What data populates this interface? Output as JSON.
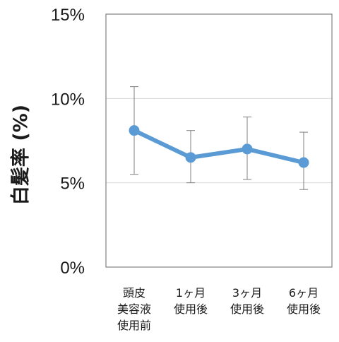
{
  "chart_data": {
    "type": "line",
    "ylabel": "白髪率 (%)",
    "ylim": [
      0,
      15
    ],
    "yticks": [
      0,
      5,
      10,
      15
    ],
    "ytick_labels": [
      "0%",
      "5%",
      "10%",
      "15%"
    ],
    "grid": "horizontal",
    "categories": [
      [
        "頭皮",
        "美容液",
        "使用前"
      ],
      [
        "1ヶ月",
        "使用後"
      ],
      [
        "3ヶ月",
        "使用後"
      ],
      [
        "6ヶ月",
        "使用後"
      ]
    ],
    "series": [
      {
        "values": [
          8.1,
          6.5,
          7.0,
          6.2
        ],
        "error_low": [
          5.5,
          5.0,
          5.2,
          4.6
        ],
        "error_high": [
          10.7,
          8.1,
          8.9,
          8.0
        ],
        "color": "#5b9bd5"
      }
    ],
    "error_bar_color": "#7f7f7f",
    "frame_color": "#808080",
    "grid_color": "#d9d9d9"
  }
}
